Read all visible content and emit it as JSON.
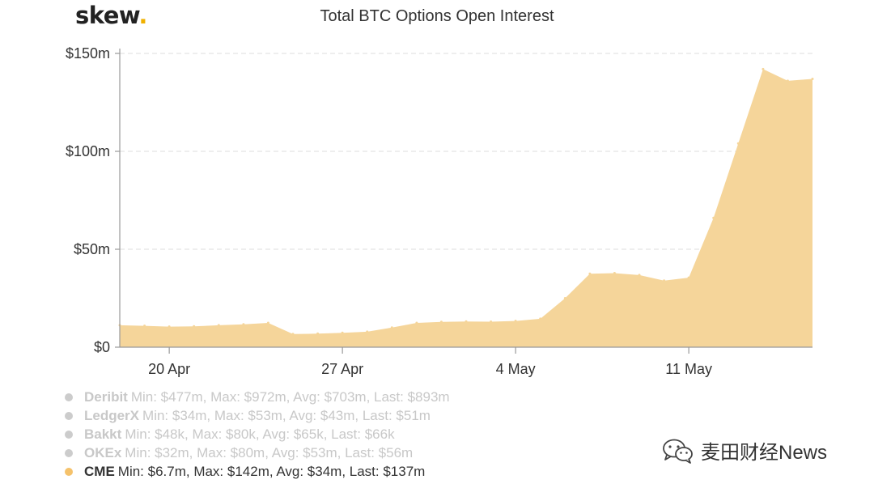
{
  "logo": {
    "text": "skew",
    "dot": "."
  },
  "chart_data": {
    "type": "area",
    "title": "Total BTC Options Open Interest",
    "xlabel": "",
    "ylabel": "",
    "x": [
      "Apr 18",
      "Apr 19",
      "Apr 20",
      "Apr 21",
      "Apr 22",
      "Apr 23",
      "Apr 24",
      "Apr 25",
      "Apr 26",
      "Apr 27",
      "Apr 28",
      "Apr 29",
      "Apr 30",
      "May 1",
      "May 2",
      "May 3",
      "May 4",
      "May 5",
      "May 6",
      "May 7",
      "May 8",
      "May 9",
      "May 10",
      "May 11",
      "May 12",
      "May 13",
      "May 14",
      "May 15",
      "May 16"
    ],
    "x_ticks": [
      "20 Apr",
      "27 Apr",
      "4 May",
      "11 May"
    ],
    "x_tick_index": [
      2,
      9,
      16,
      23
    ],
    "y_ticks": [
      "$0",
      "$50m",
      "$100m",
      "$150m"
    ],
    "y_tick_values": [
      0,
      50,
      100,
      150
    ],
    "ylim": [
      0,
      150
    ],
    "y_unit": "$m",
    "grid": true,
    "color": "#f5d59a",
    "series": [
      {
        "name": "CME",
        "values": [
          11.2,
          10.9,
          10.5,
          10.6,
          11.2,
          11.7,
          12.4,
          6.7,
          6.9,
          7.3,
          7.9,
          10.0,
          12.4,
          12.9,
          13.1,
          13.0,
          13.4,
          14.5,
          25.0,
          37.5,
          37.8,
          36.8,
          34.0,
          35.5,
          66.0,
          104.0,
          142.0,
          136.0,
          137.0
        ]
      }
    ]
  },
  "legend": [
    {
      "name": "Deribit",
      "stats": "Min: $477m, Max: $972m, Avg: $703m, Last: $893m",
      "active": false
    },
    {
      "name": "LedgerX",
      "stats": "Min: $34m, Max: $53m, Avg: $43m, Last: $51m",
      "active": false
    },
    {
      "name": "Bakkt",
      "stats": "Min: $48k, Max: $80k, Avg: $65k, Last: $66k",
      "active": false
    },
    {
      "name": "OKEx",
      "stats": "Min: $32m, Max: $80m, Avg: $53m, Last: $56m",
      "active": false
    },
    {
      "name": "CME",
      "stats": "Min: $6.7m, Max: $142m, Avg: $34m, Last: $137m",
      "active": true,
      "color": "#f5c26b"
    }
  ],
  "watermark": {
    "text": "麦田财经News",
    "icon": "wechat-icon"
  }
}
